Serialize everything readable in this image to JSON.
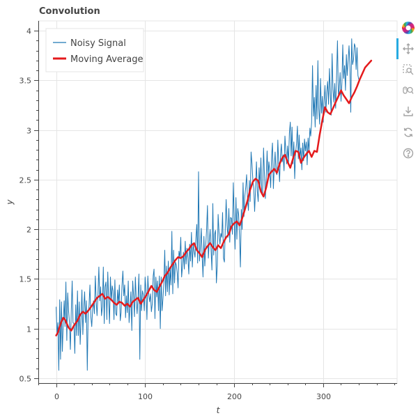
{
  "chart_data": {
    "type": "line",
    "title": "Convolution",
    "xlabel": "t",
    "ylabel": "y",
    "xlim": [
      -20,
      383
    ],
    "ylim": [
      0.45,
      4.1
    ],
    "xticks": [
      0,
      100,
      200,
      300
    ],
    "xtick_labels": [
      "0",
      "100",
      "200",
      "300"
    ],
    "yticks": [
      0.5,
      1,
      1.5,
      2,
      2.5,
      3,
      3.5,
      4
    ],
    "ytick_labels": [
      "0.5",
      "1",
      "1.5",
      "2",
      "2.5",
      "3",
      "3.5",
      "4"
    ],
    "grid": true,
    "legend_position": "top-left",
    "series": [
      {
        "name": "Noisy Signal",
        "color": "#1f77b4",
        "x_start": 0,
        "x_step": 1,
        "values": [
          1.22,
          0.94,
          1.06,
          0.58,
          1.29,
          0.69,
          1.27,
          0.77,
          1.06,
          1.28,
          1.02,
          1.47,
          0.88,
          1.36,
          1.18,
          1.06,
          0.79,
          1.17,
          1.48,
          1.06,
          1.05,
          0.75,
          1.24,
          0.93,
          1.38,
          0.93,
          1.27,
          0.84,
          1.09,
          1.39,
          0.94,
          1.21,
          1.37,
          1.06,
          1.28,
          0.58,
          1.16,
          1.23,
          1.44,
          1.12,
          1.02,
          1.2,
          1.28,
          1.15,
          1.53,
          1.27,
          1.13,
          1.34,
          1.62,
          1.28,
          1.42,
          1.13,
          1.22,
          1.62,
          1.05,
          1.42,
          1.47,
          1.09,
          1.57,
          1.28,
          1.05,
          1.52,
          1.28,
          1.43,
          1.38,
          1.09,
          1.49,
          1.15,
          1.13,
          1.39,
          1.25,
          1.44,
          1.08,
          1.16,
          1.43,
          1.58,
          1.33,
          1.44,
          1.11,
          1.33,
          1.16,
          1.48,
          1.06,
          1.21,
          1.37,
          0.98,
          1.48,
          1.34,
          1.12,
          1.52,
          1.29,
          1.15,
          1.31,
          1.55,
          0.69,
          1.44,
          1.18,
          1.38,
          1.34,
          1.18,
          1.52,
          1.37,
          1.09,
          1.53,
          1.34,
          1.27,
          1.35,
          1.17,
          1.25,
          1.53,
          1.6,
          1.1,
          1.52,
          1.32,
          1.48,
          1.18,
          1.53,
          1.0,
          1.52,
          1.18,
          1.3,
          1.46,
          1.79,
          1.33,
          1.63,
          1.37,
          1.68,
          1.34,
          1.6,
          1.44,
          1.98,
          1.35,
          1.79,
          1.46,
          1.67,
          1.64,
          1.56,
          1.41,
          1.78,
          1.72,
          1.92,
          1.52,
          1.63,
          1.77,
          1.6,
          1.88,
          1.65,
          1.81,
          1.72,
          1.55,
          1.85,
          1.68,
          1.97,
          1.62,
          1.86,
          1.78,
          1.72,
          1.91,
          2.05,
          1.66,
          2.58,
          1.68,
          1.82,
          2.01,
          1.74,
          1.52,
          1.93,
          1.63,
          1.82,
          1.99,
          2.24,
          1.71,
          1.88,
          2.0,
          1.8,
          1.59,
          2.26,
          1.74,
          1.95,
          1.99,
          1.46,
          1.63,
          2.15,
          1.97,
          1.85,
          1.96,
          1.92,
          2.17,
          1.71,
          1.67,
          2.02,
          2.3,
          2.04,
          1.92,
          2.21,
          1.87,
          2.12,
          2.11,
          1.95,
          2.47,
          2.12,
          1.8,
          2.32,
          1.9,
          2.21,
          2.15,
          1.93,
          1.62,
          2.2,
          2.0,
          2.47,
          2.13,
          2.34,
          2.43,
          2.55,
          2.3,
          2.19,
          2.49,
          2.28,
          2.78,
          2.66,
          2.49,
          2.41,
          2.18,
          2.4,
          2.68,
          2.38,
          2.28,
          2.62,
          2.43,
          2.72,
          2.37,
          2.35,
          2.82,
          2.55,
          2.31,
          2.51,
          2.79,
          2.52,
          2.68,
          2.58,
          2.42,
          2.73,
          2.87,
          2.41,
          2.62,
          2.78,
          2.57,
          2.55,
          2.9,
          2.67,
          2.48,
          2.75,
          2.86,
          2.68,
          2.75,
          2.59,
          2.94,
          2.79,
          2.66,
          2.84,
          2.67,
          2.97,
          3.08,
          2.74,
          3.03,
          2.66,
          2.88,
          2.51,
          2.77,
          2.86,
          3.04,
          2.71,
          2.95,
          2.73,
          2.82,
          2.6,
          2.87,
          2.69,
          2.91,
          2.79,
          2.88,
          2.65,
          2.92,
          2.78,
          3.02,
          2.94,
          3.08,
          3.65,
          3.14,
          3.33,
          3.03,
          3.45,
          3.11,
          3.7,
          3.22,
          3.06,
          3.52,
          3.17,
          3.34,
          3.08,
          3.29,
          3.45,
          3.18,
          3.38,
          3.49,
          3.26,
          3.62,
          3.36,
          3.15,
          3.77,
          3.41,
          3.28,
          3.47,
          3.22,
          3.53,
          3.9,
          3.36,
          3.41,
          3.58,
          3.29,
          3.48,
          3.86,
          3.52,
          3.65,
          3.4,
          3.76,
          3.55,
          3.7,
          3.85,
          3.63,
          3.18,
          3.92,
          3.66,
          3.71,
          3.87,
          3.84,
          3.61,
          3.83,
          3.55,
          3.51
        ]
      },
      {
        "name": "Moving Average",
        "color": "#e41a1c",
        "x": [
          0,
          2,
          4,
          6,
          8,
          10,
          12,
          14,
          17,
          20,
          24,
          27,
          30,
          33,
          37,
          40,
          43,
          46,
          49,
          52,
          55,
          58,
          62,
          65,
          68,
          71,
          74,
          77,
          80,
          83,
          86,
          89,
          92,
          95,
          98,
          101,
          104,
          107,
          110,
          113,
          116,
          119,
          122,
          125,
          128,
          131,
          134,
          137,
          140,
          143,
          146,
          149,
          152,
          155,
          158,
          161,
          164,
          167,
          170,
          173,
          176,
          179,
          182,
          185,
          188,
          191,
          194,
          197,
          200,
          203,
          206,
          209,
          212,
          215,
          218,
          221,
          224,
          227,
          230,
          233,
          236,
          239,
          242,
          245,
          248,
          251,
          254,
          257,
          260,
          263,
          266,
          269,
          272,
          275,
          278,
          281,
          284,
          287,
          290,
          293,
          296,
          299,
          302,
          305,
          308,
          311,
          314,
          317,
          320,
          323,
          326,
          329,
          332,
          335,
          338,
          341,
          344,
          347,
          350,
          354
        ],
        "values": [
          0.93,
          0.96,
          1.02,
          1.07,
          1.11,
          1.09,
          1.05,
          1.01,
          0.98,
          1.03,
          1.08,
          1.14,
          1.17,
          1.15,
          1.19,
          1.23,
          1.27,
          1.31,
          1.33,
          1.35,
          1.3,
          1.32,
          1.29,
          1.26,
          1.24,
          1.27,
          1.26,
          1.23,
          1.25,
          1.22,
          1.27,
          1.29,
          1.31,
          1.25,
          1.29,
          1.33,
          1.38,
          1.43,
          1.39,
          1.37,
          1.42,
          1.47,
          1.53,
          1.56,
          1.61,
          1.65,
          1.69,
          1.72,
          1.71,
          1.73,
          1.77,
          1.8,
          1.84,
          1.86,
          1.79,
          1.76,
          1.72,
          1.79,
          1.83,
          1.86,
          1.82,
          1.79,
          1.84,
          1.81,
          1.87,
          1.92,
          1.95,
          2.03,
          2.06,
          2.08,
          2.04,
          2.11,
          2.2,
          2.29,
          2.4,
          2.48,
          2.51,
          2.49,
          2.38,
          2.33,
          2.42,
          2.55,
          2.58,
          2.61,
          2.57,
          2.66,
          2.72,
          2.75,
          2.68,
          2.62,
          2.71,
          2.79,
          2.78,
          2.67,
          2.72,
          2.76,
          2.79,
          2.73,
          2.79,
          2.78,
          2.95,
          3.1,
          3.23,
          3.18,
          3.16,
          3.22,
          3.28,
          3.34,
          3.4,
          3.35,
          3.31,
          3.27,
          3.33,
          3.38,
          3.44,
          3.51,
          3.57,
          3.63,
          3.66,
          3.7
        ]
      }
    ]
  },
  "toolbar": {
    "tools": [
      "bokeh-logo-icon",
      "pan-icon",
      "box-zoom-icon",
      "wheel-zoom-icon",
      "save-icon",
      "reset-icon",
      "help-icon"
    ]
  }
}
